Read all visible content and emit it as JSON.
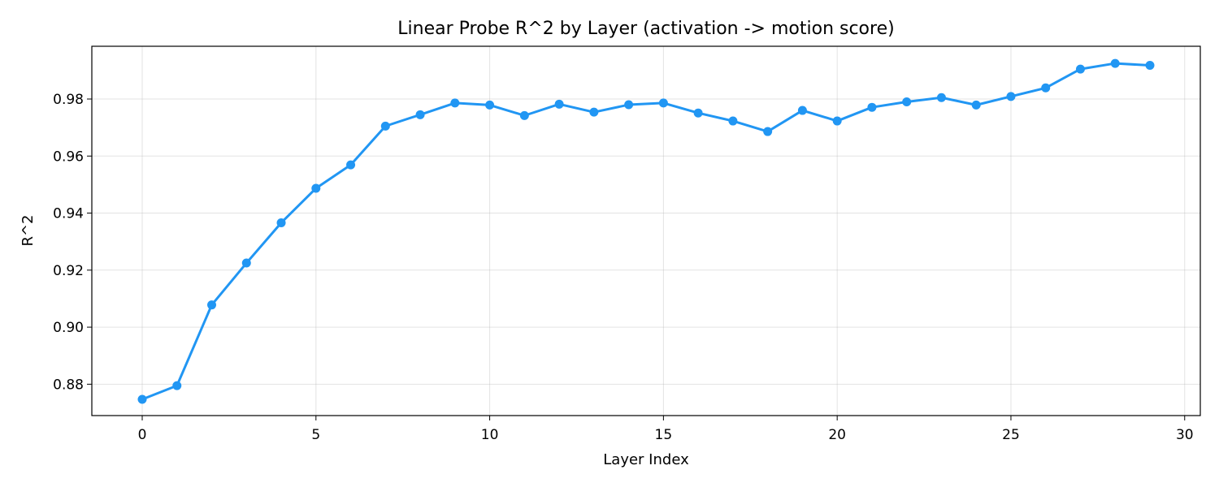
{
  "chart_data": {
    "type": "line",
    "title": "Linear Probe R^2 by Layer (activation -> motion score)",
    "xlabel": "Layer Index",
    "ylabel": "R^2",
    "xlim": [
      -1.45,
      30.45
    ],
    "ylim": [
      0.869,
      0.9985
    ],
    "xticks": [
      0,
      5,
      10,
      15,
      20,
      25,
      30
    ],
    "yticks": [
      0.88,
      0.9,
      0.92,
      0.94,
      0.96,
      0.98
    ],
    "xtick_labels": [
      "0",
      "5",
      "10",
      "15",
      "20",
      "25",
      "30"
    ],
    "ytick_labels": [
      "0.88",
      "0.90",
      "0.92",
      "0.94",
      "0.96",
      "0.98"
    ],
    "grid": true,
    "color": "#2196f3",
    "x": [
      0,
      1,
      2,
      3,
      4,
      5,
      6,
      7,
      8,
      9,
      10,
      11,
      12,
      13,
      14,
      15,
      16,
      17,
      18,
      19,
      20,
      21,
      22,
      23,
      24,
      25,
      26,
      27,
      28,
      29
    ],
    "y": [
      0.8747,
      0.8795,
      0.9078,
      0.9225,
      0.9366,
      0.9487,
      0.9569,
      0.9705,
      0.9745,
      0.9786,
      0.9779,
      0.9742,
      0.9782,
      0.9754,
      0.978,
      0.9786,
      0.9751,
      0.9723,
      0.9686,
      0.976,
      0.9723,
      0.9771,
      0.979,
      0.9805,
      0.9779,
      0.9809,
      0.9839,
      0.9905,
      0.9925,
      0.9918
    ]
  }
}
